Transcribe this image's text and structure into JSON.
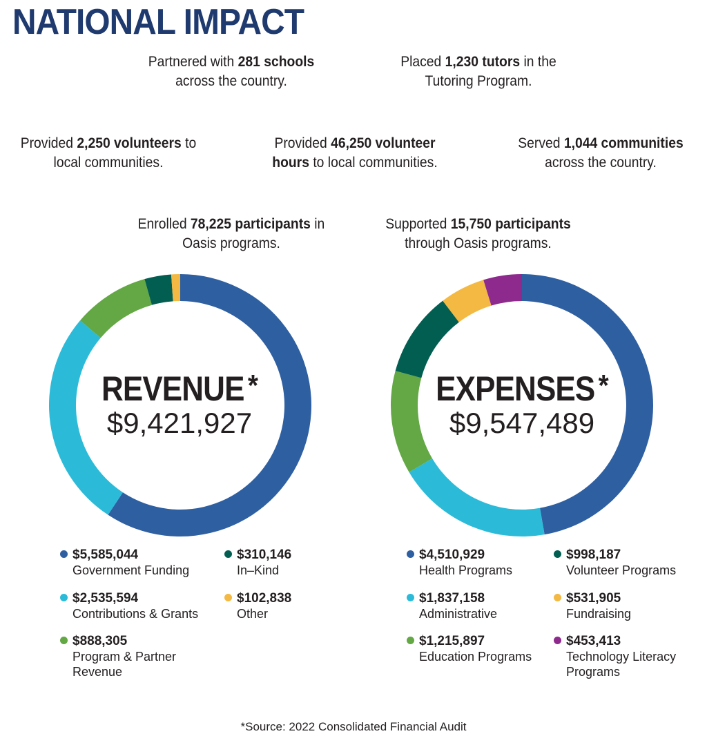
{
  "title": "NATIONAL IMPACT",
  "stats": [
    {
      "pre": "Partnered with ",
      "bold": "281 schools",
      "post": " across the country."
    },
    {
      "pre": "Placed ",
      "bold": "1,230 tutors",
      "post": " in the Tutoring Program."
    },
    {
      "pre": "Provided ",
      "bold": "2,250 volunteers",
      "post": " to local communities."
    },
    {
      "pre": "Provided ",
      "bold": "46,250 volunteer hours",
      "post": " to local communities."
    },
    {
      "pre": "Served ",
      "bold": "1,044 communities",
      "post": " across the country."
    },
    {
      "pre": "Enrolled ",
      "bold": "78,225 participants",
      "post": " in Oasis programs."
    },
    {
      "pre": "Supported ",
      "bold": "15,750 participants",
      "post": " through Oasis programs."
    }
  ],
  "colors": {
    "title": "#1f3a6e",
    "dark_blue": "#2e5fa1",
    "cyan": "#2bbbd9",
    "green": "#63a844",
    "dark_teal": "#035e52",
    "gold": "#f3b942",
    "purple": "#8e2a8d"
  },
  "chart_data": [
    {
      "type": "pie",
      "title": "REVENUE",
      "title_mark": "*",
      "total_label": "$9,421,927",
      "total": 9421927,
      "slices": [
        {
          "label": "Government Funding",
          "value_label": "$5,585,044",
          "value": 5585044,
          "color": "#2e5fa1"
        },
        {
          "label": "Contributions & Grants",
          "value_label": "$2,535,594",
          "value": 2535594,
          "color": "#2bbbd9"
        },
        {
          "label": "Program & Partner Revenue",
          "value_label": "$888,305",
          "value": 888305,
          "color": "#63a844"
        },
        {
          "label": "In–Kind",
          "value_label": "$310,146",
          "value": 310146,
          "color": "#035e52"
        },
        {
          "label": "Other",
          "value_label": "$102,838",
          "value": 102838,
          "color": "#f3b942"
        }
      ]
    },
    {
      "type": "pie",
      "title": "EXPENSES",
      "title_mark": "*",
      "total_label": "$9,547,489",
      "total": 9547489,
      "slices": [
        {
          "label": "Health Programs",
          "value_label": "$4,510,929",
          "value": 4510929,
          "color": "#2e5fa1"
        },
        {
          "label": "Administrative",
          "value_label": "$1,837,158",
          "value": 1837158,
          "color": "#2bbbd9"
        },
        {
          "label": "Education Programs",
          "value_label": "$1,215,897",
          "value": 1215897,
          "color": "#63a844"
        },
        {
          "label": "Volunteer Programs",
          "value_label": "$998,187",
          "value": 998187,
          "color": "#035e52"
        },
        {
          "label": "Fundraising",
          "value_label": "$531,905",
          "value": 531905,
          "color": "#f3b942"
        },
        {
          "label": "Technology Literacy Programs",
          "value_label": "$453,413",
          "value": 453413,
          "color": "#8e2a8d"
        }
      ]
    }
  ],
  "footnote": "*Source: 2022 Consolidated Financial Audit"
}
